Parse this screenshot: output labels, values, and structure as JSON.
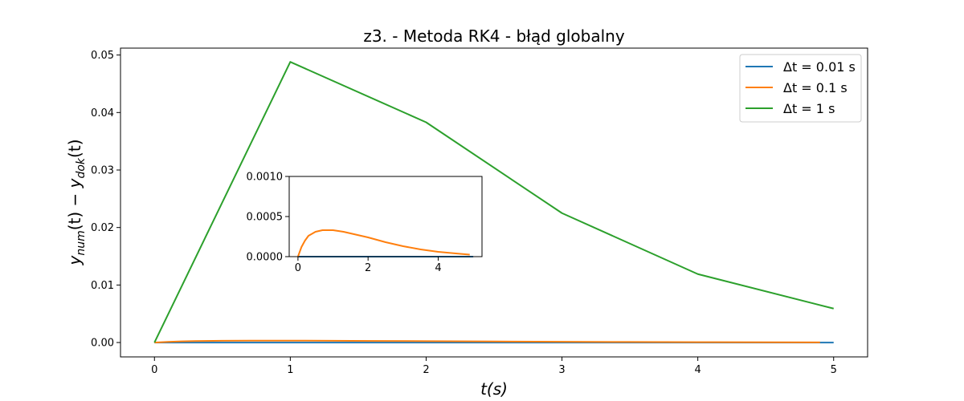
{
  "chart_data": {
    "type": "line",
    "title": "z3. - Metoda RK4 - błąd globalny",
    "xlabel": "t(s)",
    "ylabel": "y_num(t) − y_dok(t)",
    "ylabel_parts": {
      "y1": "y",
      "s1": "num",
      "mid": "(t) − ",
      "y2": "y",
      "s2": "dok",
      "end": "(t)"
    },
    "xlim": [
      -0.25,
      5.25
    ],
    "ylim": [
      -0.0025,
      0.0512
    ],
    "xticks": [
      "0",
      "1",
      "2",
      "3",
      "4",
      "5"
    ],
    "yticks": [
      "0.00",
      "0.01",
      "0.02",
      "0.03",
      "0.04",
      "0.05"
    ],
    "grid": false,
    "legend_position": "top-right",
    "legend": [
      "Δt = 0.01 s",
      "Δt = 0.1 s",
      "Δt = 1 s"
    ],
    "series": [
      {
        "name": "Δt = 0.01 s",
        "color": "#1f77b4",
        "x": [
          0,
          0.5,
          1,
          1.5,
          2,
          2.5,
          3,
          3.5,
          4,
          4.5,
          5
        ],
        "y": [
          0,
          3e-08,
          3e-08,
          3e-08,
          2e-08,
          2e-08,
          1e-08,
          1e-08,
          8e-09,
          5e-09,
          3e-09
        ]
      },
      {
        "name": "Δt = 0.1 s",
        "color": "#ff7f0e",
        "x": [
          0,
          0.1,
          0.2,
          0.3,
          0.5,
          0.7,
          1.0,
          1.3,
          1.6,
          2.0,
          2.5,
          3.0,
          3.5,
          4.0,
          4.5,
          4.9
        ],
        "y": [
          0,
          0.00012,
          0.0002,
          0.00026,
          0.00031,
          0.00033,
          0.00033,
          0.00031,
          0.00028,
          0.00024,
          0.00018,
          0.00013,
          9e-05,
          6e-05,
          4e-05,
          2.5e-05
        ]
      },
      {
        "name": "Δt = 1 s",
        "color": "#2ca02c",
        "x": [
          0,
          1,
          2,
          3,
          4,
          5
        ],
        "y": [
          0,
          0.0488,
          0.0383,
          0.0225,
          0.0119,
          0.0059
        ]
      }
    ],
    "inset": {
      "xlim": [
        -0.25,
        5.25
      ],
      "ylim": [
        0,
        0.001
      ],
      "xticks": [
        "0",
        "2",
        "4"
      ],
      "yticks": [
        "0.0000",
        "0.0005",
        "0.0010"
      ],
      "series_shown": [
        "Δt = 0.01 s",
        "Δt = 0.1 s"
      ]
    }
  }
}
